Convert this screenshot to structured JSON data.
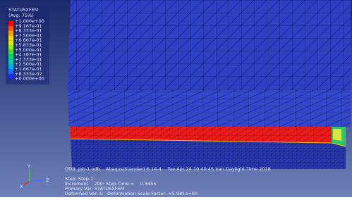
{
  "legend": {
    "title": "STATUSXFEM",
    "subtitle": "(Avg: 75%)",
    "labels": [
      "+1.000e+00",
      "+9.167e-01",
      "+8.333e-01",
      "+7.500e-01",
      "+6.667e-01",
      "+5.833e-01",
      "+5.000e-01",
      "+4.167e-01",
      "+3.333e-01",
      "+2.500e-01",
      "+1.667e-01",
      "+8.333e-02",
      "+0.000e+00"
    ]
  },
  "info": {
    "odb": "ODB: Job-1.odb    Abaqus/Standard 6.14-4    Tue Apr 24 10:40:45 Iran Daylight Time 2018",
    "step": "Step: Step-1",
    "increment": "Increment    200: Step Time =    0.3455",
    "primary": "Primary Var: STATUSXFEM",
    "deformed": "Deformed Var: U   Deformation Scale Factor: +5.981e+00"
  },
  "triad": {
    "x": "X",
    "y": "Y",
    "z": "Z"
  }
}
